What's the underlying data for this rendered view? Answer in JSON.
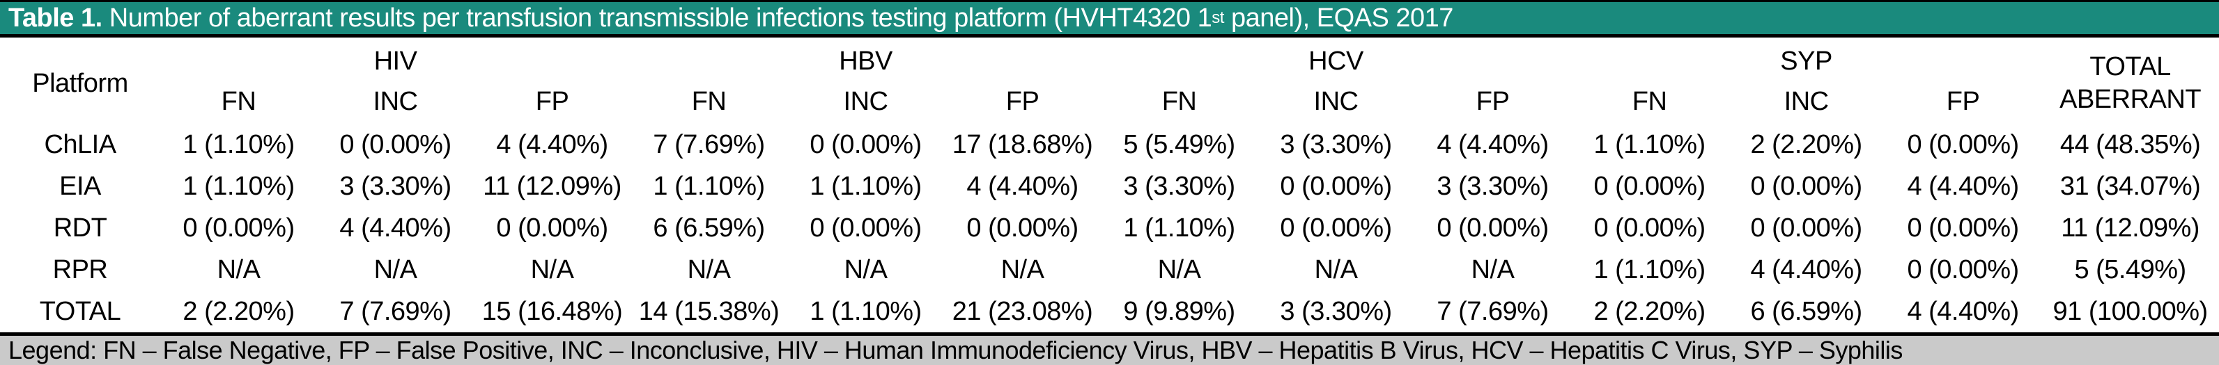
{
  "colors": {
    "title_background": "#1a8a7d",
    "title_text": "#ffffff",
    "legend_background": "#cacaca",
    "rule": "#000000",
    "body_text": "#000000"
  },
  "title": {
    "prefix": "Table 1.",
    "body": " Number of aberrant results per transfusion transmissible infections testing platform (HVHT4320 1",
    "superscript": "st",
    "suffix": " panel), EQAS 2017"
  },
  "table": {
    "platform_header": "Platform",
    "groups": [
      {
        "label": "HIV",
        "sub": [
          "FN",
          "INC",
          "FP"
        ]
      },
      {
        "label": "HBV",
        "sub": [
          "FN",
          "INC",
          "FP"
        ]
      },
      {
        "label": "HCV",
        "sub": [
          "FN",
          "INC",
          "FP"
        ]
      },
      {
        "label": "SYP",
        "sub": [
          "FN",
          "INC",
          "FP"
        ]
      }
    ],
    "total_header": {
      "line1": "TOTAL",
      "line2": "ABERRANT"
    },
    "rows": [
      {
        "platform": "ChLIA",
        "cells": [
          "1 (1.10%)",
          "0 (0.00%)",
          "4 (4.40%)",
          "7 (7.69%)",
          "0 (0.00%)",
          "17 (18.68%)",
          "5 (5.49%)",
          "3 (3.30%)",
          "4 (4.40%)",
          "1 (1.10%)",
          "2 (2.20%)",
          "0 (0.00%)",
          "44 (48.35%)"
        ]
      },
      {
        "platform": "EIA",
        "cells": [
          "1 (1.10%)",
          "3 (3.30%)",
          "11 (12.09%)",
          "1 (1.10%)",
          "1 (1.10%)",
          "4 (4.40%)",
          "3 (3.30%)",
          "0 (0.00%)",
          "3 (3.30%)",
          "0 (0.00%)",
          "0 (0.00%)",
          "4 (4.40%)",
          "31 (34.07%)"
        ]
      },
      {
        "platform": "RDT",
        "cells": [
          "0 (0.00%)",
          "4 (4.40%)",
          "0 (0.00%)",
          "6 (6.59%)",
          "0 (0.00%)",
          "0 (0.00%)",
          "1 (1.10%)",
          "0 (0.00%)",
          "0 (0.00%)",
          "0 (0.00%)",
          "0 (0.00%)",
          "0 (0.00%)",
          "11 (12.09%)"
        ]
      },
      {
        "platform": "RPR",
        "cells": [
          "N/A",
          "N/A",
          "N/A",
          "N/A",
          "N/A",
          "N/A",
          "N/A",
          "N/A",
          "N/A",
          "1 (1.10%)",
          "4 (4.40%)",
          "0 (0.00%)",
          "5 (5.49%)"
        ]
      },
      {
        "platform": "TOTAL",
        "cells": [
          "2 (2.20%)",
          "7 (7.69%)",
          "15 (16.48%)",
          "14 (15.38%)",
          "1 (1.10%)",
          "21 (23.08%)",
          "9 (9.89%)",
          "3 (3.30%)",
          "7 (7.69%)",
          "2 (2.20%)",
          "6 (6.59%)",
          "4 (4.40%)",
          "91 (100.00%)"
        ]
      }
    ]
  },
  "legend": {
    "text": "Legend: FN – False Negative, FP – False Positive, INC – Inconclusive, HIV – Human Immunodeficiency Virus, HBV – Hepatitis B Virus, HCV – Hepatitis C Virus, SYP – Syphilis"
  }
}
